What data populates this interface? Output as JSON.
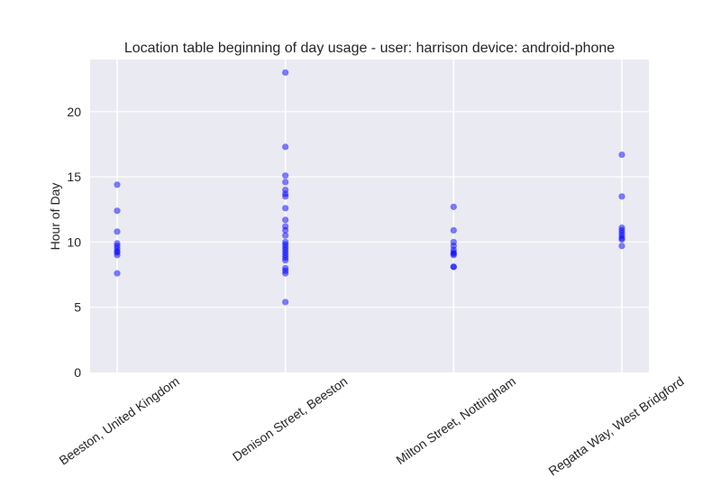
{
  "chart_data": {
    "type": "scatter",
    "title": "Location table beginning of day usage -  user: harrison device: android-phone",
    "xlabel": "",
    "ylabel": "Hour of Day",
    "categories": [
      "Beeston, United Kingdom",
      "Denison Street, Beeston",
      "Milton Street, Nottingham",
      "Regatta Way, West Bridgford"
    ],
    "ylim": [
      0,
      24
    ],
    "yticks": [
      0,
      5,
      10,
      15,
      20
    ],
    "grid": true,
    "point_color": "#0000ff",
    "background_color": "#eaeaf2",
    "points": [
      [
        14.4,
        12.4,
        10.8,
        9.9,
        9.7,
        9.5,
        9.3,
        9.2,
        9.0,
        7.6
      ],
      [
        23.0,
        17.3,
        15.1,
        14.6,
        14.0,
        13.7,
        13.5,
        12.6,
        11.7,
        11.2,
        10.9,
        10.5,
        10.0,
        9.8,
        9.6,
        9.4,
        9.2,
        9.0,
        8.8,
        8.6,
        8.0,
        7.8,
        7.6,
        5.4
      ],
      [
        12.7,
        10.9,
        10.0,
        9.7,
        9.4,
        9.2,
        9.1,
        9.0,
        8.1,
        8.1
      ],
      [
        16.7,
        13.5,
        11.1,
        10.9,
        10.7,
        10.5,
        10.3,
        10.2,
        9.7
      ]
    ]
  }
}
